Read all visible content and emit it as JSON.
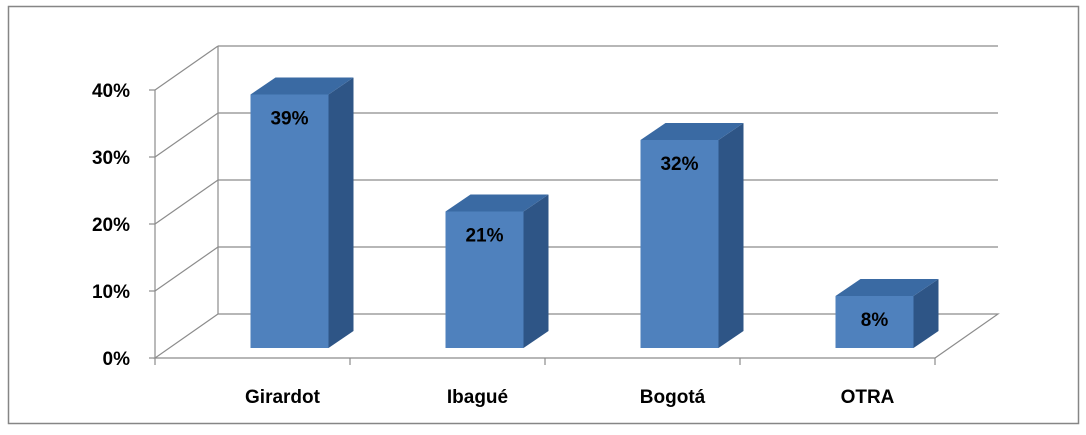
{
  "chart_data": {
    "type": "bar",
    "style": "3d-column",
    "categories": [
      "Girardot",
      "Ibagué",
      "Bogotá",
      "OTRA"
    ],
    "values": [
      39,
      21,
      32,
      8
    ],
    "data_labels": [
      "39%",
      "21%",
      "32%",
      "8%"
    ],
    "y_ticks": [
      0,
      10,
      20,
      30,
      40
    ],
    "y_tick_labels": [
      "0%",
      "10%",
      "20%",
      "30%",
      "40%"
    ],
    "ylim": [
      0,
      40
    ],
    "grid": true,
    "legend": "none",
    "colors": {
      "bar_front": "#4f81bd",
      "bar_side": "#2e5586",
      "bar_top": "#3a6aa3",
      "gridline": "#8c8c8c",
      "frame": "#868686"
    }
  }
}
